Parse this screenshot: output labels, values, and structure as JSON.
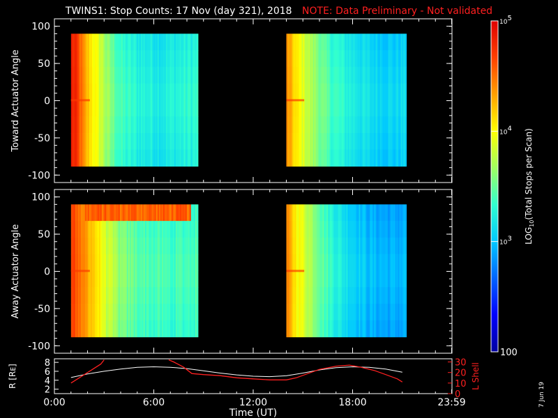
{
  "title": {
    "main": "TWINS1: Stop Counts: 17 Nov (day 321), 2018",
    "note": "NOTE: Data Preliminary - Not validated",
    "note_color": "#ff2020"
  },
  "side_date": "7 Jun 19",
  "colorbar": {
    "label_html": "LOG<sub>10</sub>(Total Stops per Scan)",
    "label_text": "LOG10(Total Stops per Scan)",
    "scale": "log",
    "range": [
      100,
      100000
    ],
    "ticks": [
      {
        "value": 100,
        "label": "100"
      },
      {
        "value": 1000,
        "label": "10^3"
      },
      {
        "value": 10000,
        "label": "10^4"
      },
      {
        "value": 100000,
        "label": "10^5"
      }
    ],
    "colormap": [
      "#0000a0",
      "#0000ff",
      "#0064ff",
      "#00c8ff",
      "#30ffd0",
      "#a0ff60",
      "#ffff00",
      "#ffa000",
      "#ff4000",
      "#e00000"
    ]
  },
  "chart_data": [
    {
      "type": "heatmap",
      "panel": "toward",
      "ylabel": "Toward Actuator Angle",
      "ylim": [
        -110,
        110
      ],
      "yticks": [
        100,
        50,
        0,
        -50,
        -100
      ],
      "xlim_hours": [
        0,
        24
      ],
      "data_ylim": [
        -88,
        90
      ],
      "segments": [
        {
          "start_hour": 1.0,
          "end_hour": 8.6,
          "profile": [
            [
              1.0,
              4.85
            ],
            [
              1.3,
              4.75
            ],
            [
              1.8,
              4.3
            ],
            [
              2.5,
              3.95
            ],
            [
              3.2,
              3.65
            ],
            [
              4.0,
              3.4
            ],
            [
              5.0,
              3.3
            ],
            [
              6.5,
              3.25
            ],
            [
              8.6,
              3.35
            ]
          ]
        },
        {
          "start_hour": 14.0,
          "end_hour": 21.2,
          "profile": [
            [
              14.0,
              4.4
            ],
            [
              14.6,
              4.05
            ],
            [
              15.5,
              3.7
            ],
            [
              16.5,
              3.45
            ],
            [
              17.5,
              3.3
            ],
            [
              19.0,
              3.15
            ],
            [
              20.5,
              3.1
            ],
            [
              21.2,
              3.15
            ]
          ]
        }
      ]
    },
    {
      "type": "heatmap",
      "panel": "away",
      "ylabel": "Away Actuator Angle",
      "ylim": [
        -110,
        110
      ],
      "yticks": [
        100,
        50,
        0,
        -50,
        -100
      ],
      "xlim_hours": [
        0,
        24
      ],
      "data_ylim": [
        -88,
        90
      ],
      "segments": [
        {
          "start_hour": 1.0,
          "end_hour": 8.6,
          "profile": [
            [
              1.0,
              4.7
            ],
            [
              1.5,
              4.5
            ],
            [
              2.2,
              4.25
            ],
            [
              3.0,
              3.9
            ],
            [
              4.0,
              3.6
            ],
            [
              5.5,
              3.45
            ],
            [
              7.0,
              3.4
            ],
            [
              8.6,
              3.45
            ]
          ],
          "hot_band": {
            "angle": 82,
            "start_hour": 1.8,
            "end_hour": 8.2
          }
        },
        {
          "start_hour": 14.0,
          "end_hour": 21.2,
          "profile": [
            [
              14.0,
              4.4
            ],
            [
              14.5,
              4.1
            ],
            [
              15.5,
              3.7
            ],
            [
              16.5,
              3.4
            ],
            [
              17.5,
              3.2
            ],
            [
              19.0,
              3.0
            ],
            [
              20.5,
              2.95
            ],
            [
              21.2,
              3.0
            ]
          ]
        }
      ]
    },
    {
      "type": "line",
      "panel": "orbit",
      "xlabel": "Time (UT)",
      "xticks": [
        "0:00",
        "6:00",
        "12:00",
        "18:00",
        "23:59"
      ],
      "xtick_hours": [
        0,
        6,
        12,
        18,
        23.98
      ],
      "left_axis": {
        "label": "R [Rᴇ]",
        "label_text": "R [RE]",
        "range": [
          1,
          8.8
        ],
        "ticks": [
          2,
          4,
          6,
          8
        ],
        "color": "#ffffff"
      },
      "right_axis": {
        "label": "L Shell",
        "range": [
          0,
          33
        ],
        "ticks": [
          0,
          10,
          20,
          30
        ],
        "color": "#ff2020"
      },
      "series": [
        {
          "axis": "left",
          "color": "#ffffff",
          "x": [
            1.0,
            2.0,
            3.0,
            4.0,
            5.0,
            6.0,
            7.0,
            8.0,
            9.0,
            10.0,
            11.0,
            12.0,
            13.0,
            14.0,
            15.0,
            16.0,
            17.0,
            18.0,
            19.0,
            20.0,
            21.0
          ],
          "y": [
            4.6,
            5.4,
            6.0,
            6.5,
            6.9,
            7.0,
            6.9,
            6.6,
            6.1,
            5.6,
            5.2,
            4.9,
            4.8,
            5.0,
            5.6,
            6.3,
            6.8,
            7.0,
            6.9,
            6.5,
            5.8
          ]
        },
        {
          "axis": "right",
          "color": "#ff2020",
          "x": [
            1.0,
            1.6,
            2.2,
            2.8,
            3.0,
            null,
            6.9,
            7.2,
            7.8,
            8.3,
            9.0,
            10.0,
            11.0,
            12.0,
            13.0,
            14.0,
            14.6,
            15.3,
            16.0,
            17.0,
            17.8,
            18.5,
            19.3,
            20.0,
            20.7,
            21.0
          ],
          "y": [
            10,
            16,
            22,
            28,
            32,
            null,
            32,
            30,
            25,
            19,
            18,
            17,
            15,
            14,
            13,
            13,
            15,
            19,
            23,
            26,
            27,
            25,
            22,
            18,
            14,
            11
          ]
        }
      ]
    }
  ]
}
